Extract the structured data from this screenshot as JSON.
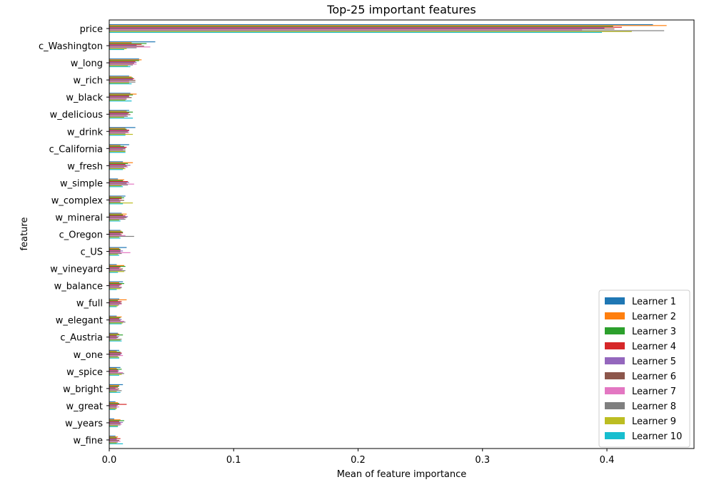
{
  "chart_data": {
    "type": "bar",
    "orientation": "horizontal",
    "title": "Top-25 important features",
    "xlabel": "Mean of feature importance",
    "ylabel": "feature",
    "xlim": [
      0,
      0.47
    ],
    "xticks": [
      "0.0",
      "0.1",
      "0.2",
      "0.3",
      "0.4"
    ],
    "grid": false,
    "legend_position": "lower-right",
    "categories": [
      "price",
      "c_Washington",
      "w_long",
      "w_rich",
      "w_black",
      "w_delicious",
      "w_drink",
      "c_California",
      "w_fresh",
      "w_simple",
      "w_complex",
      "w_mineral",
      "c_Oregon",
      "c_US",
      "w_vineyard",
      "w_balance",
      "w_full",
      "w_elegant",
      "c_Austria",
      "w_one",
      "w_spice",
      "w_bright",
      "w_great",
      "w_years",
      "w_fine"
    ],
    "series": [
      {
        "name": "Learner 1",
        "color": "#1f77b4",
        "values": [
          0.437,
          0.037,
          0.024,
          0.016,
          0.017,
          0.016,
          0.021,
          0.016,
          0.011,
          0.007,
          0.013,
          0.01,
          0.009,
          0.014,
          0.006,
          0.011,
          0.008,
          0.006,
          0.007,
          0.008,
          0.009,
          0.011,
          0.005,
          0.004,
          0.005
        ]
      },
      {
        "name": "Learner 2",
        "color": "#ff7f0e",
        "values": [
          0.448,
          0.018,
          0.026,
          0.018,
          0.022,
          0.014,
          0.013,
          0.009,
          0.019,
          0.012,
          0.01,
          0.014,
          0.01,
          0.008,
          0.012,
          0.008,
          0.014,
          0.01,
          0.008,
          0.006,
          0.006,
          0.008,
          0.007,
          0.009,
          0.007
        ]
      },
      {
        "name": "Learner 3",
        "color": "#2ca02c",
        "values": [
          0.405,
          0.03,
          0.024,
          0.019,
          0.019,
          0.019,
          0.014,
          0.012,
          0.015,
          0.011,
          0.012,
          0.011,
          0.011,
          0.009,
          0.013,
          0.012,
          0.007,
          0.009,
          0.011,
          0.009,
          0.01,
          0.008,
          0.008,
          0.012,
          0.006
        ]
      },
      {
        "name": "Learner 4",
        "color": "#d62728",
        "values": [
          0.412,
          0.026,
          0.021,
          0.02,
          0.016,
          0.016,
          0.016,
          0.014,
          0.013,
          0.015,
          0.01,
          0.013,
          0.011,
          0.009,
          0.009,
          0.01,
          0.01,
          0.008,
          0.006,
          0.01,
          0.007,
          0.007,
          0.014,
          0.008,
          0.009
        ]
      },
      {
        "name": "Learner 5",
        "color": "#9467bd",
        "values": [
          0.398,
          0.022,
          0.022,
          0.019,
          0.016,
          0.015,
          0.016,
          0.013,
          0.017,
          0.016,
          0.008,
          0.015,
          0.009,
          0.011,
          0.008,
          0.009,
          0.009,
          0.01,
          0.008,
          0.01,
          0.008,
          0.005,
          0.007,
          0.011,
          0.006
        ]
      },
      {
        "name": "Learner 6",
        "color": "#8c564b",
        "values": [
          0.406,
          0.028,
          0.02,
          0.021,
          0.018,
          0.017,
          0.015,
          0.013,
          0.014,
          0.014,
          0.012,
          0.014,
          0.01,
          0.009,
          0.011,
          0.008,
          0.01,
          0.009,
          0.007,
          0.009,
          0.007,
          0.008,
          0.006,
          0.009,
          0.008
        ]
      },
      {
        "name": "Learner 7",
        "color": "#e377c2",
        "values": [
          0.38,
          0.033,
          0.022,
          0.016,
          0.014,
          0.014,
          0.016,
          0.011,
          0.015,
          0.02,
          0.009,
          0.012,
          0.013,
          0.017,
          0.01,
          0.01,
          0.01,
          0.012,
          0.006,
          0.011,
          0.011,
          0.007,
          0.008,
          0.01,
          0.009
        ]
      },
      {
        "name": "Learner 8",
        "color": "#7f7f7f",
        "values": [
          0.446,
          0.022,
          0.019,
          0.021,
          0.014,
          0.015,
          0.013,
          0.013,
          0.012,
          0.015,
          0.009,
          0.013,
          0.02,
          0.01,
          0.013,
          0.01,
          0.008,
          0.013,
          0.01,
          0.007,
          0.012,
          0.01,
          0.006,
          0.009,
          0.007
        ]
      },
      {
        "name": "Learner 9",
        "color": "#bcbd22",
        "values": [
          0.42,
          0.014,
          0.015,
          0.016,
          0.013,
          0.012,
          0.019,
          0.013,
          0.013,
          0.01,
          0.019,
          0.008,
          0.008,
          0.007,
          0.012,
          0.009,
          0.007,
          0.011,
          0.009,
          0.008,
          0.01,
          0.006,
          0.006,
          0.007,
          0.006
        ]
      },
      {
        "name": "Learner 10",
        "color": "#17becf",
        "values": [
          0.396,
          0.012,
          0.017,
          0.018,
          0.018,
          0.019,
          0.013,
          0.013,
          0.011,
          0.011,
          0.011,
          0.009,
          0.009,
          0.008,
          0.007,
          0.006,
          0.006,
          0.01,
          0.01,
          0.008,
          0.008,
          0.009,
          0.005,
          0.007,
          0.011
        ]
      }
    ]
  }
}
